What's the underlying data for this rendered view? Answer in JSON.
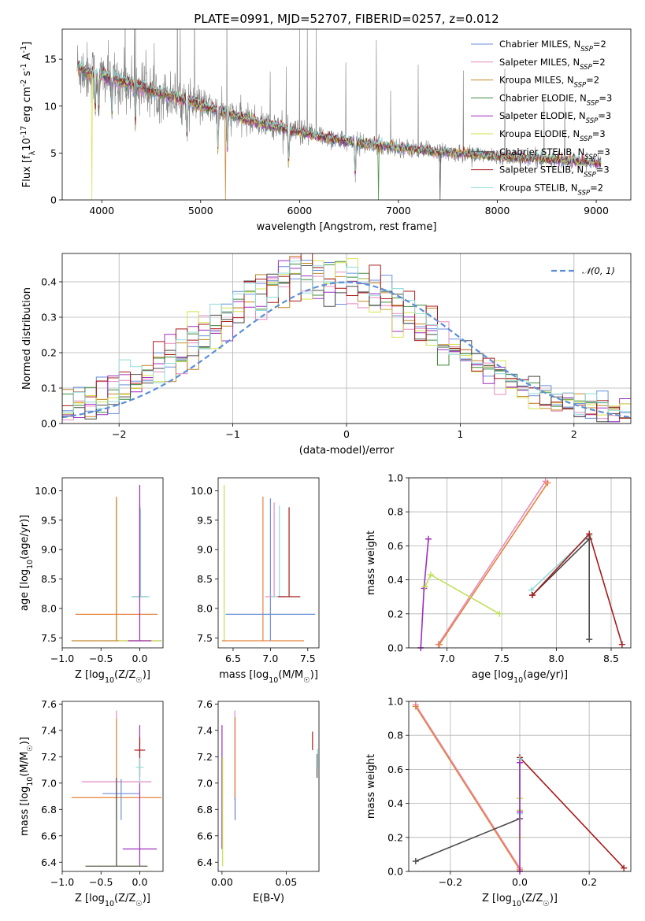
{
  "figure": {
    "title": "PLATE=0991, MJD=52707, FIBERID=0257, z=0.012"
  },
  "colors": {
    "spectrum_data": "#808080",
    "series": [
      "#6b8fdc",
      "#e689c0",
      "#c2862a",
      "#3c8a3c",
      "#9d2fbe",
      "#d7e04e",
      "#4a4a4a",
      "#a81a1a",
      "#8fdbd8"
    ],
    "extra": [
      "#e6823a",
      "#bfe05a",
      "#e58cc0"
    ],
    "normal_curve": "#5b8fd6"
  },
  "chart_data": [
    {
      "id": "spectrum",
      "type": "line",
      "xlabel": "wavelength [Angstrom, rest frame]",
      "ylabel": "Flux [f_λ10^{-17} erg cm^{-2} s^{-1} A^{-1}]",
      "xlim": [
        3600,
        9350
      ],
      "ylim": [
        0,
        18.2
      ],
      "xticks": [
        4000,
        5000,
        6000,
        7000,
        8000,
        9000
      ],
      "yticks": [
        0,
        5,
        10,
        15
      ],
      "grid": false,
      "legend_position": "upper-right",
      "legend": [
        {
          "name": "Chabrier MILES",
          "nssp": "2"
        },
        {
          "name": "Salpeter MILES",
          "nssp": "2"
        },
        {
          "name": "Kroupa MILES",
          "nssp": "2"
        },
        {
          "name": "Chabrier ELODIE",
          "nssp": "3"
        },
        {
          "name": "Salpeter ELODIE",
          "nssp": "3"
        },
        {
          "name": "Kroupa ELODIE",
          "nssp": "3"
        },
        {
          "name": "Chabrier STELIB",
          "nssp": "3"
        },
        {
          "name": "Salpeter STELIB",
          "nssp": "3"
        },
        {
          "name": "Kroupa STELIB",
          "nssp": "2"
        }
      ],
      "continuum": {
        "x": [
          3750,
          3850,
          4000,
          4200,
          4400,
          4600,
          4800,
          5000,
          5200,
          5400,
          5600,
          5800,
          6000,
          6200,
          6400,
          6600,
          6800,
          7000,
          7200,
          7400,
          7600,
          7800,
          8000,
          8200,
          8400,
          8600,
          8800,
          9050
        ],
        "y": [
          14.2,
          13.6,
          13.2,
          12.6,
          12.0,
          11.3,
          10.8,
          10.1,
          9.4,
          8.8,
          8.2,
          7.7,
          7.2,
          6.8,
          6.4,
          6.1,
          5.8,
          5.6,
          5.35,
          5.15,
          4.95,
          4.8,
          4.65,
          4.5,
          4.4,
          4.3,
          4.15,
          3.9
        ]
      }
    },
    {
      "id": "residuals",
      "type": "step",
      "xlabel": "(data-model)/error",
      "ylabel": "Normed distribution",
      "xlim": [
        -2.5,
        2.5
      ],
      "ylim": [
        0,
        0.48
      ],
      "xticks": [
        -2,
        -1,
        0,
        1,
        2
      ],
      "xticklabels": [
        "−2",
        "−1",
        "0",
        "1",
        "2"
      ],
      "yticks": [
        0.0,
        0.1,
        0.2,
        0.3,
        0.4
      ],
      "yticklabels": [
        "0.0",
        "0.1",
        "0.2",
        "0.3",
        "0.4"
      ],
      "grid": true,
      "legend": "𝒩(0, 1)",
      "legend_position": "upper-right",
      "bin_width": 0.1
    },
    {
      "id": "age-vs-Z",
      "type": "errorbar",
      "xlabel": "Z [log10(Z/Z☉)]",
      "ylabel": "age  [log10(age/yr)]",
      "xlim": [
        -1.0,
        0.3
      ],
      "ylim": [
        7.33,
        10.22
      ],
      "xticks": [
        -1.0,
        -0.5,
        0.0
      ],
      "xticklabels": [
        "−1.0",
        "−0.5",
        "0.0"
      ],
      "yticks": [
        7.5,
        8.0,
        8.5,
        9.0,
        9.5,
        10.0
      ],
      "yticklabels": [
        "7.5",
        "8.0",
        "8.5",
        "9.0",
        "9.5",
        "10.0"
      ],
      "grid": false,
      "points": [
        {
          "x": -0.3,
          "xerr": 0.53,
          "y": 7.9,
          "y0": 7.45,
          "y1": 9.9,
          "c": 9
        },
        {
          "x": -0.3,
          "xerr": 0.58,
          "y": 7.45,
          "y0": 7.45,
          "y1": 9.87,
          "c": 2
        },
        {
          "x": 0.0,
          "xerr": 0.27,
          "y": 7.45,
          "y0": 7.45,
          "y1": 10.1,
          "c": 10
        },
        {
          "x": 0.0,
          "xerr": 0.1,
          "y": 8.2,
          "y0": 8.2,
          "y1": 9.77,
          "c": 6
        },
        {
          "x": 0.01,
          "xerr": 0.12,
          "y": 8.2,
          "y0": 8.2,
          "y1": 9.7,
          "c": 8
        },
        {
          "x": 0.0,
          "xerr": 0.15,
          "y": 7.45,
          "y0": 7.45,
          "y1": 10.1,
          "c": 4
        }
      ]
    },
    {
      "id": "age-vs-mass",
      "type": "errorbar",
      "xlabel": "mass [log10(M/M☉)]",
      "ylabel": "",
      "xlim": [
        6.3,
        7.65
      ],
      "ylim": [
        7.33,
        10.22
      ],
      "xticks": [
        6.5,
        7.0,
        7.5
      ],
      "xticklabels": [
        "6.5",
        "7.0",
        "7.5"
      ],
      "yticks": [
        7.5,
        8.0,
        8.5,
        9.0,
        9.5,
        10.0
      ],
      "yticklabels": [
        "7.5",
        "8.0",
        "8.5",
        "9.0",
        "9.5",
        "10.0"
      ],
      "grid": false,
      "points": [
        {
          "x": 6.38,
          "xerr": 0.02,
          "y": 7.45,
          "y0": 7.45,
          "y1": 10.1,
          "c": 10
        },
        {
          "x": 6.9,
          "xerr": 0.55,
          "y": 7.45,
          "y0": 7.45,
          "y1": 9.9,
          "c": 9
        },
        {
          "x": 7.0,
          "xerr": 0.6,
          "y": 7.9,
          "y0": 7.45,
          "y1": 9.87,
          "c": 0
        },
        {
          "x": 7.05,
          "xerr": 0.12,
          "y": 8.2,
          "y0": 8.2,
          "y1": 9.8,
          "c": 11
        },
        {
          "x": 7.12,
          "xerr": 0.1,
          "y": 8.2,
          "y0": 8.2,
          "y1": 9.75,
          "c": 8
        },
        {
          "x": 7.25,
          "xerr": 0.15,
          "y": 8.2,
          "y0": 8.2,
          "y1": 9.72,
          "c": 7
        }
      ]
    },
    {
      "id": "massweight-vs-age",
      "type": "line",
      "xlabel": "age  [log10(age/yr)]",
      "ylabel": "mass weight",
      "xlim": [
        6.65,
        8.68
      ],
      "ylim": [
        0,
        1
      ],
      "xticks": [
        7.0,
        7.5,
        8.0,
        8.5
      ],
      "xticklabels": [
        "7.0",
        "7.5",
        "8.0",
        "8.5"
      ],
      "yticks": [
        0.0,
        0.2,
        0.4,
        0.6,
        0.8,
        1.0
      ],
      "yticklabels": [
        "0.0",
        "0.2",
        "0.4",
        "0.6",
        "0.8",
        "1.0"
      ],
      "grid": true,
      "series": [
        {
          "c": 11,
          "x": [
            6.92,
            7.9
          ],
          "y": [
            0.02,
            0.98
          ]
        },
        {
          "c": 9,
          "x": [
            6.93,
            7.92
          ],
          "y": [
            0.02,
            0.97
          ]
        },
        {
          "c": 4,
          "x": [
            6.76,
            6.79,
            6.83
          ],
          "y": [
            0.0,
            0.35,
            0.64
          ]
        },
        {
          "c": 10,
          "x": [
            6.8,
            6.85,
            7.48
          ],
          "y": [
            0.36,
            0.43,
            0.2
          ]
        },
        {
          "c": 8,
          "x": [
            7.77,
            8.3
          ],
          "y": [
            0.34,
            0.66
          ]
        },
        {
          "c": 6,
          "x": [
            8.3,
            8.3,
            7.78
          ],
          "y": [
            0.05,
            0.64,
            0.31
          ]
        },
        {
          "c": 7,
          "x": [
            7.78,
            8.3,
            8.6
          ],
          "y": [
            0.31,
            0.67,
            0.02
          ]
        }
      ]
    },
    {
      "id": "mass-vs-Z",
      "type": "errorbar",
      "xlabel": "Z [log10(Z/Z☉)]",
      "ylabel": "mass [log10(M/M☉)]",
      "xlim": [
        -1.0,
        0.3
      ],
      "ylim": [
        6.33,
        7.62
      ],
      "xticks": [
        -1.0,
        -0.5,
        0.0
      ],
      "xticklabels": [
        "−1.0",
        "−0.5",
        "0.0"
      ],
      "yticks": [
        6.4,
        6.6,
        6.8,
        7.0,
        7.2,
        7.4,
        7.6
      ],
      "yticklabels": [
        "6.4",
        "6.6",
        "6.8",
        "7.0",
        "7.2",
        "7.4",
        "7.6"
      ],
      "grid": false,
      "points": [
        {
          "x": -0.3,
          "xerr": 0.45,
          "y": 7.01,
          "y0": 6.87,
          "y1": 7.55,
          "c": 1
        },
        {
          "x": -0.3,
          "xerr": 0.58,
          "y": 6.89,
          "y0": 6.73,
          "y1": 7.49,
          "c": 9
        },
        {
          "x": -0.24,
          "xerr": 0.24,
          "y": 6.92,
          "y0": 6.72,
          "y1": 7.03,
          "c": 0
        },
        {
          "x": 0.0,
          "xerr": 0.22,
          "y": 6.5,
          "y0": 6.37,
          "y1": 7.44,
          "c": 4
        },
        {
          "x": 0.0,
          "xerr": 0.07,
          "y": 7.25,
          "y0": 7.05,
          "y1": 7.35,
          "c": 7
        },
        {
          "x": 0.0,
          "xerr": 0.05,
          "y": 7.12,
          "y0": 7.0,
          "y1": 7.19,
          "c": 8
        },
        {
          "x": -0.3,
          "xerr": 0.4,
          "y": 6.37,
          "y0": 6.37,
          "y1": 6.9,
          "c": 10
        },
        {
          "x": -0.3,
          "xerr": 0.4,
          "y": 6.37,
          "y0": 6.37,
          "y1": 7.04,
          "c": 6
        }
      ]
    },
    {
      "id": "mass-vs-EBV",
      "type": "errorbar",
      "xlabel": "E(B-V)",
      "ylabel": "",
      "xlim": [
        -0.003,
        0.0755
      ],
      "ylim": [
        6.33,
        7.62
      ],
      "xticks": [
        0.0,
        0.05
      ],
      "xticklabels": [
        "0.00",
        "0.05"
      ],
      "yticks": [
        6.4,
        6.6,
        6.8,
        7.0,
        7.2,
        7.4,
        7.6
      ],
      "yticklabels": [
        "6.4",
        "6.6",
        "6.8",
        "7.0",
        "7.2",
        "7.4",
        "7.6"
      ],
      "grid": false,
      "points": [
        {
          "x": 0.0,
          "xerr": 0.0,
          "y": 6.9,
          "y0": 6.5,
          "y1": 7.44,
          "c": 4
        },
        {
          "x": 0.0005,
          "xerr": 0.0,
          "y": 6.45,
          "y0": 6.37,
          "y1": 7.2,
          "c": 10
        },
        {
          "x": 0.01,
          "xerr": 0.0,
          "y": 7.0,
          "y0": 6.87,
          "y1": 7.55,
          "c": 1
        },
        {
          "x": 0.0102,
          "xerr": 0.0,
          "y": 6.9,
          "y0": 6.72,
          "y1": 7.5,
          "c": 9
        },
        {
          "x": 0.0102,
          "xerr": 0.0,
          "y": 6.8,
          "y0": 6.72,
          "y1": 6.89,
          "c": 0
        },
        {
          "x": 0.0705,
          "xerr": 0.0,
          "y": 7.32,
          "y0": 7.25,
          "y1": 7.39,
          "c": 7
        },
        {
          "x": 0.074,
          "xerr": 0.0,
          "y": 7.15,
          "y0": 7.04,
          "y1": 7.22,
          "c": 6
        },
        {
          "x": 0.0745,
          "xerr": 0.0,
          "y": 7.2,
          "y0": 7.12,
          "y1": 7.26,
          "c": 8
        }
      ]
    },
    {
      "id": "massweight-vs-Z",
      "type": "line",
      "xlabel": "Z [log10(Z/Z☉)]",
      "ylabel": "mass weight",
      "xlim": [
        -0.32,
        0.32
      ],
      "ylim": [
        0,
        1
      ],
      "xticks": [
        -0.2,
        0.0,
        0.2
      ],
      "xticklabels": [
        "−0.2",
        "0.0",
        "0.2"
      ],
      "yticks": [
        0.0,
        0.2,
        0.4,
        0.6,
        0.8,
        1.0
      ],
      "yticklabels": [
        "0.0",
        "0.2",
        "0.4",
        "0.6",
        "0.8",
        "1.0"
      ],
      "grid": true,
      "series": [
        {
          "c": 11,
          "x": [
            -0.3,
            0.0
          ],
          "y": [
            0.98,
            0.02
          ]
        },
        {
          "c": 9,
          "x": [
            -0.3,
            0.0
          ],
          "y": [
            0.97,
            0.01
          ]
        },
        {
          "c": 6,
          "x": [
            -0.3,
            0.0,
            0.0
          ],
          "y": [
            0.06,
            0.31,
            0.64
          ]
        },
        {
          "c": 7,
          "x": [
            0.0,
            0.3
          ],
          "y": [
            0.67,
            0.02
          ]
        },
        {
          "c": 8,
          "x": [
            0.0,
            0.0
          ],
          "y": [
            0.34,
            0.66
          ]
        },
        {
          "c": 10,
          "x": [
            0.0,
            0.0,
            0.0
          ],
          "y": [
            0.2,
            0.36,
            0.43
          ]
        },
        {
          "c": 4,
          "x": [
            0.0,
            0.0,
            0.0
          ],
          "y": [
            0.0,
            0.35,
            0.64
          ]
        }
      ]
    }
  ]
}
